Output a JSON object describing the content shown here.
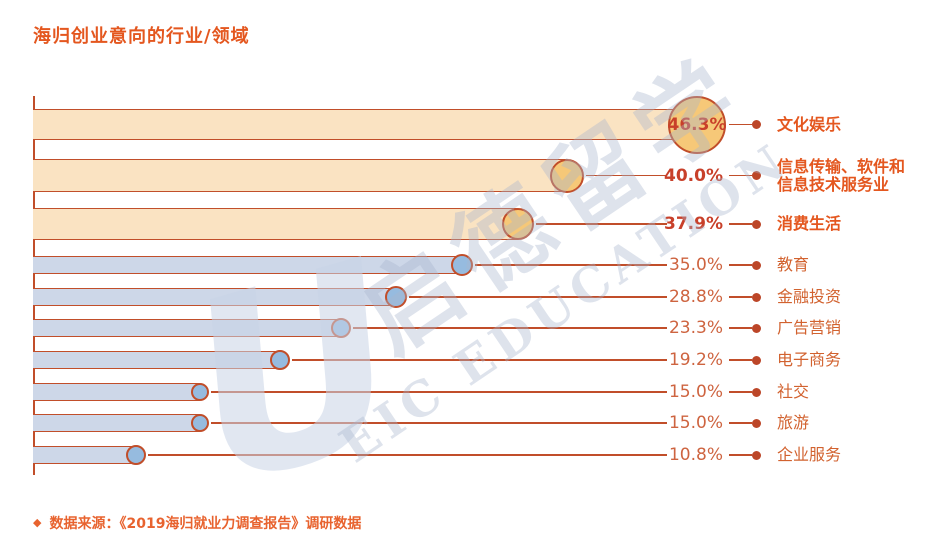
{
  "title": "海归创业意向的行业/领域",
  "source": {
    "bullet": "◆",
    "text": "数据来源：《2019海归就业力调查报告》调研数据"
  },
  "watermark": {
    "cn": "启德留学",
    "en": "EIC EDUCATION",
    "logo_letter": "U"
  },
  "colors": {
    "accent_orange": "#E4571F",
    "stroke_brick": "#C14E2A",
    "highlight_bar_fill": "#FAE3C2",
    "highlight_bubble_fill": "#F6C878",
    "normal_bar_fill": "#CDD7E8",
    "normal_bubble_fill": "#96BBDF",
    "pct_highlight": "#C8402A",
    "pct_normal": "#CE6440",
    "dot": "#BC4628"
  },
  "chart_data": {
    "type": "bar",
    "orientation": "horizontal",
    "title": "海归创业意向的行业/领域",
    "unit": "%",
    "xlim": [
      0,
      50
    ],
    "grid": false,
    "legend": false,
    "categories": [
      "文化娱乐",
      "信息传输、软件和信息技术服务业",
      "消费生活",
      "教育",
      "金融投资",
      "广告营销",
      "电子商务",
      "社交",
      "旅游",
      "企业服务"
    ],
    "values": [
      46.3,
      40.0,
      37.9,
      35.0,
      28.8,
      23.3,
      19.2,
      15.0,
      15.0,
      10.8
    ],
    "rows": [
      {
        "label": "文化娱乐",
        "label_lines": [
          "文化娱乐"
        ],
        "value": 46.3,
        "pct_label": "46.3%",
        "group": "highlight",
        "pct_inside_bubble": true
      },
      {
        "label": "信息传输、软件和信息技术服务业",
        "label_lines": [
          "信息传输、软件和",
          "信息技术服务业"
        ],
        "value": 40.0,
        "pct_label": "40.0%",
        "group": "highlight",
        "pct_inside_bubble": false
      },
      {
        "label": "消费生活",
        "label_lines": [
          "消费生活"
        ],
        "value": 37.9,
        "pct_label": "37.9%",
        "group": "highlight",
        "pct_inside_bubble": false
      },
      {
        "label": "教育",
        "label_lines": [
          "教育"
        ],
        "value": 35.0,
        "pct_label": "35.0%",
        "group": "normal",
        "pct_inside_bubble": false
      },
      {
        "label": "金融投资",
        "label_lines": [
          "金融投资"
        ],
        "value": 28.8,
        "pct_label": "28.8%",
        "group": "normal",
        "pct_inside_bubble": false
      },
      {
        "label": "广告营销",
        "label_lines": [
          "广告营销"
        ],
        "value": 23.3,
        "pct_label": "23.3%",
        "group": "normal",
        "pct_inside_bubble": false
      },
      {
        "label": "电子商务",
        "label_lines": [
          "电子商务"
        ],
        "value": 19.2,
        "pct_label": "19.2%",
        "group": "normal",
        "pct_inside_bubble": false
      },
      {
        "label": "社交",
        "label_lines": [
          "社交"
        ],
        "value": 15.0,
        "pct_label": "15.0%",
        "group": "normal",
        "pct_inside_bubble": false
      },
      {
        "label": "旅游",
        "label_lines": [
          "旅游"
        ],
        "value": 15.0,
        "pct_label": "15.0%",
        "group": "normal",
        "pct_inside_bubble": false
      },
      {
        "label": "企业服务",
        "label_lines": [
          "企业服务"
        ],
        "value": 10.8,
        "pct_label": "10.8%",
        "group": "normal",
        "pct_inside_bubble": false
      }
    ]
  }
}
